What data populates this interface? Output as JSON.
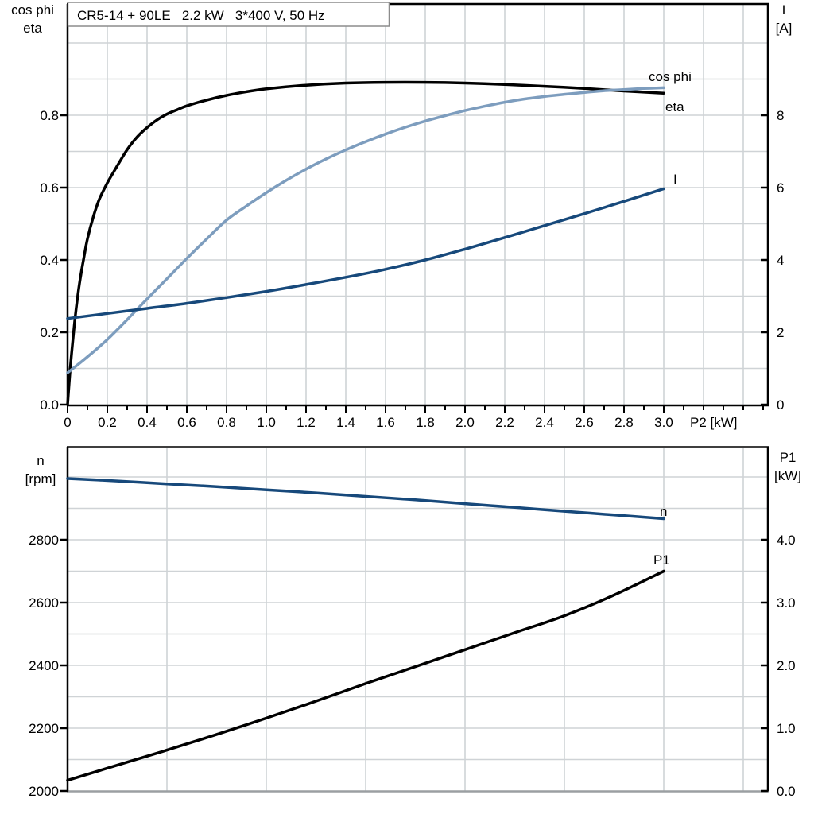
{
  "title": "CR5-14 + 90LE   2.2 kW   3*400 V, 50 Hz",
  "colors": {
    "black_curve": "#000000",
    "dark_blue_curve": "#17497B",
    "light_blue_curve": "#7D9DBE",
    "grid": "#CFD3D6",
    "axis": "#000000",
    "bottom_panel_top_frame": "#3F3F3F",
    "bottom_panel_bottom_frame": "#9B9FA2",
    "title_box_border": "#8C8C8C"
  },
  "chart_data": [
    {
      "type": "line",
      "panel": "top",
      "title": "CR5-14 + 90LE   2.2 kW   3*400 V, 50 Hz",
      "x_axis": {
        "label": "P2 [kW]",
        "tick_values": [
          0,
          0.2,
          0.4,
          0.6,
          0.8,
          1.0,
          1.2,
          1.4,
          1.6,
          1.8,
          2.0,
          2.2,
          2.4,
          2.6,
          2.8,
          3.0
        ],
        "tick_labels": [
          "0",
          "0.2",
          "0.4",
          "0.6",
          "0.8",
          "1.0",
          "1.2",
          "1.4",
          "1.6",
          "1.8",
          "2.0",
          "2.2",
          "2.4",
          "2.6",
          "2.8",
          "3.0"
        ],
        "range_shown": [
          0,
          3.5
        ]
      },
      "left_axis": {
        "title_lines": [
          "cos phi",
          "eta"
        ],
        "tick_values": [
          0.0,
          0.2,
          0.4,
          0.6,
          0.8
        ],
        "tick_labels": [
          "0.0",
          "0.2",
          "0.4",
          "0.6",
          "0.8"
        ],
        "range_shown": [
          0,
          1.1
        ]
      },
      "right_axis": {
        "title_lines": [
          "I",
          "[A]"
        ],
        "tick_values": [
          0,
          2,
          4,
          6,
          8
        ],
        "tick_labels": [
          "0",
          "2",
          "4",
          "6",
          "8"
        ],
        "range_shown": [
          0,
          11
        ]
      },
      "series": [
        {
          "name": "eta",
          "label": "eta",
          "axis": "left",
          "color": "#000000",
          "points": [
            [
              0,
              0
            ],
            [
              0.01,
              0.075
            ],
            [
              0.02,
              0.14
            ],
            [
              0.04,
              0.25
            ],
            [
              0.06,
              0.335
            ],
            [
              0.08,
              0.4
            ],
            [
              0.1,
              0.458
            ],
            [
              0.13,
              0.52
            ],
            [
              0.16,
              0.568
            ],
            [
              0.2,
              0.613
            ],
            [
              0.25,
              0.66
            ],
            [
              0.3,
              0.705
            ],
            [
              0.35,
              0.74
            ],
            [
              0.4,
              0.766
            ],
            [
              0.45,
              0.787
            ],
            [
              0.5,
              0.803
            ],
            [
              0.55,
              0.815
            ],
            [
              0.6,
              0.826
            ],
            [
              0.7,
              0.842
            ],
            [
              0.8,
              0.855
            ],
            [
              0.9,
              0.865
            ],
            [
              1.0,
              0.873
            ],
            [
              1.2,
              0.883
            ],
            [
              1.4,
              0.889
            ],
            [
              1.6,
              0.891
            ],
            [
              1.8,
              0.891
            ],
            [
              2.0,
              0.889
            ],
            [
              2.2,
              0.885
            ],
            [
              2.4,
              0.88
            ],
            [
              2.6,
              0.874
            ],
            [
              2.8,
              0.867
            ],
            [
              3.0,
              0.861
            ]
          ]
        },
        {
          "name": "cos phi",
          "label": "cos phi",
          "axis": "left",
          "color": "#7D9DBE",
          "points": [
            [
              0,
              0.088
            ],
            [
              0.1,
              0.132
            ],
            [
              0.2,
              0.18
            ],
            [
              0.3,
              0.235
            ],
            [
              0.4,
              0.292
            ],
            [
              0.5,
              0.348
            ],
            [
              0.6,
              0.404
            ],
            [
              0.7,
              0.458
            ],
            [
              0.8,
              0.51
            ],
            [
              0.9,
              0.549
            ],
            [
              1.0,
              0.586
            ],
            [
              1.1,
              0.62
            ],
            [
              1.2,
              0.651
            ],
            [
              1.3,
              0.679
            ],
            [
              1.4,
              0.704
            ],
            [
              1.5,
              0.727
            ],
            [
              1.6,
              0.748
            ],
            [
              1.7,
              0.767
            ],
            [
              1.8,
              0.784
            ],
            [
              1.9,
              0.799
            ],
            [
              2.0,
              0.813
            ],
            [
              2.1,
              0.825
            ],
            [
              2.2,
              0.836
            ],
            [
              2.3,
              0.845
            ],
            [
              2.4,
              0.852
            ],
            [
              2.5,
              0.858
            ],
            [
              2.6,
              0.863
            ],
            [
              2.7,
              0.868
            ],
            [
              2.8,
              0.871
            ],
            [
              2.9,
              0.874
            ],
            [
              3.0,
              0.876
            ]
          ]
        },
        {
          "name": "I",
          "label": "I",
          "axis": "right",
          "color": "#17497B",
          "points": [
            [
              0,
              2.38
            ],
            [
              0.2,
              2.52
            ],
            [
              0.4,
              2.66
            ],
            [
              0.6,
              2.8
            ],
            [
              0.8,
              2.96
            ],
            [
              1.0,
              3.13
            ],
            [
              1.2,
              3.32
            ],
            [
              1.4,
              3.52
            ],
            [
              1.6,
              3.74
            ],
            [
              1.8,
              4.0
            ],
            [
              2.0,
              4.3
            ],
            [
              2.2,
              4.62
            ],
            [
              2.4,
              4.95
            ],
            [
              2.6,
              5.28
            ],
            [
              2.8,
              5.62
            ],
            [
              3.0,
              5.97
            ]
          ]
        }
      ]
    },
    {
      "type": "line",
      "panel": "bottom",
      "x_axis": {
        "label": "",
        "tick_values": [],
        "tick_labels": [],
        "range_shown": [
          0,
          3.5
        ]
      },
      "left_axis": {
        "title_lines": [
          "n",
          "[rpm]"
        ],
        "tick_values": [
          2000,
          2200,
          2400,
          2600,
          2800
        ],
        "tick_labels": [
          "2000",
          "2200",
          "2400",
          "2600",
          "2800"
        ],
        "range_shown": [
          2000,
          3100
        ]
      },
      "right_axis": {
        "title_lines": [
          "P1",
          "[kW]"
        ],
        "tick_values": [
          0.0,
          1.0,
          2.0,
          3.0,
          4.0
        ],
        "tick_labels": [
          "0.0",
          "1.0",
          "2.0",
          "3.0",
          "4.0"
        ],
        "range_shown": [
          0,
          5.5
        ]
      },
      "series": [
        {
          "name": "n",
          "label": "n",
          "axis": "left",
          "color": "#17497B",
          "points": [
            [
              0,
              2995
            ],
            [
              0.25,
              2987
            ],
            [
              0.5,
              2978
            ],
            [
              0.75,
              2969
            ],
            [
              1.0,
              2959
            ],
            [
              1.25,
              2949
            ],
            [
              1.5,
              2938
            ],
            [
              1.75,
              2927
            ],
            [
              2.0,
              2915
            ],
            [
              2.25,
              2903
            ],
            [
              2.5,
              2891
            ],
            [
              2.75,
              2879
            ],
            [
              3.0,
              2867
            ]
          ]
        },
        {
          "name": "P1",
          "label": "P1",
          "axis": "right",
          "color": "#000000",
          "points": [
            [
              0,
              0.17
            ],
            [
              0.25,
              0.41
            ],
            [
              0.5,
              0.65
            ],
            [
              0.75,
              0.9
            ],
            [
              1.0,
              1.16
            ],
            [
              1.25,
              1.43
            ],
            [
              1.5,
              1.71
            ],
            [
              1.75,
              1.98
            ],
            [
              2.0,
              2.25
            ],
            [
              2.25,
              2.52
            ],
            [
              2.5,
              2.79
            ],
            [
              2.75,
              3.12
            ],
            [
              3.0,
              3.5
            ]
          ]
        }
      ]
    }
  ]
}
